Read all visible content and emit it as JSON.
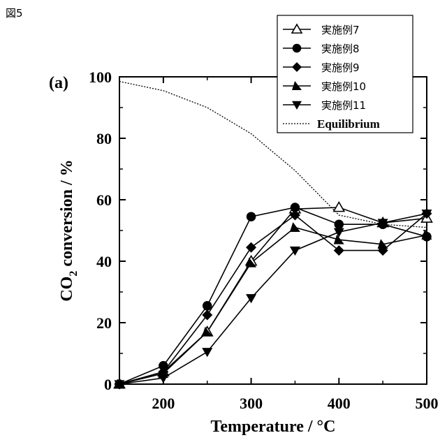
{
  "figure_label": "図5",
  "chart_data": {
    "type": "line",
    "panel_label": "(a)",
    "xlabel": "Temperature / °C",
    "ylabel_prefix": "CO",
    "ylabel_subscript": "2",
    "ylabel_suffix": " conversion / %",
    "xlim": [
      150,
      500
    ],
    "ylim": [
      0,
      100
    ],
    "xticks": [
      200,
      300,
      400,
      500
    ],
    "yticks": [
      0,
      20,
      40,
      60,
      80,
      100
    ],
    "grid": false,
    "legend_position": "top-right",
    "series": [
      {
        "name": "実施例7",
        "marker": "triangle-up-open",
        "x": [
          150,
          200,
          250,
          300,
          350,
          400,
          450,
          500
        ],
        "y": [
          0,
          4,
          17,
          40,
          57,
          57.5,
          52.5,
          54
        ]
      },
      {
        "name": "実施例8",
        "marker": "circle-filled",
        "x": [
          150,
          200,
          250,
          300,
          350,
          400,
          450,
          500
        ],
        "y": [
          0,
          6,
          25.5,
          54.5,
          57.5,
          52,
          52,
          48
        ]
      },
      {
        "name": "実施例9",
        "marker": "diamond-filled",
        "x": [
          150,
          200,
          250,
          300,
          350,
          400,
          450,
          500
        ],
        "y": [
          0,
          4,
          22.5,
          44.5,
          55,
          43.5,
          43.5,
          55.5
        ]
      },
      {
        "name": "実施例10",
        "marker": "triangle-right-filled",
        "x": [
          150,
          200,
          250,
          300,
          350,
          400,
          450,
          500
        ],
        "y": [
          0,
          3.5,
          17,
          39.5,
          51,
          47,
          45.5,
          48.5
        ]
      },
      {
        "name": "実施例11",
        "marker": "triangle-down-filled",
        "x": [
          150,
          200,
          250,
          300,
          350,
          400,
          450,
          500
        ],
        "y": [
          0,
          2,
          10.5,
          28,
          43.5,
          49.5,
          52.5,
          55.5
        ]
      },
      {
        "name": "Equilibrium",
        "marker": "none",
        "line": "dotted",
        "x": [
          150,
          200,
          250,
          300,
          350,
          400,
          450,
          500
        ],
        "y": [
          98.5,
          95.5,
          90,
          81.5,
          69.5,
          55,
          52,
          51
        ]
      }
    ]
  }
}
